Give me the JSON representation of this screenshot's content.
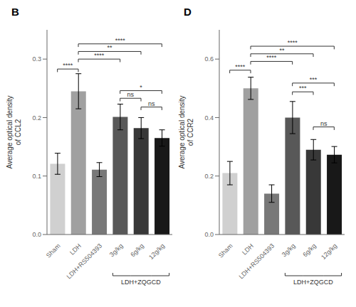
{
  "chart_data": [
    {
      "type": "bar",
      "title": "B",
      "ylabel": "Average optical density\nof CCL2",
      "categories": [
        "Sham",
        "LDH",
        "LDH+RS504393",
        "3g/kg",
        "6g/kg",
        "12g/kg"
      ],
      "values": [
        0.121,
        0.245,
        0.111,
        0.201,
        0.182,
        0.165
      ],
      "errors": [
        0.018,
        0.03,
        0.012,
        0.022,
        0.018,
        0.014
      ],
      "colors": [
        "#d0d0d0",
        "#a0a0a0",
        "#787878",
        "#585858",
        "#383838",
        "#181818"
      ],
      "ylim": [
        0.0,
        0.35
      ],
      "yticks": [
        {
          "value": 0,
          "label": "0.0"
        },
        0.1,
        0.2,
        0.3
      ],
      "annotations": [
        {
          "from": "Sham",
          "to": "LDH",
          "y": 0.283,
          "label": "****"
        },
        {
          "from": "LDH",
          "to": "3g/kg",
          "y": 0.3,
          "label": "****"
        },
        {
          "from": "LDH",
          "to": "6g/kg",
          "y": 0.313,
          "label": "**"
        },
        {
          "from": "LDH",
          "to": "12g/kg",
          "y": 0.326,
          "label": "****"
        },
        {
          "from": "3g/kg",
          "to": "6g/kg",
          "y": 0.233,
          "label": "ns"
        },
        {
          "from": "6g/kg",
          "to": "12g/kg",
          "y": 0.218,
          "label": "ns"
        },
        {
          "from": "3g/kg",
          "to": "12g/kg",
          "y": 0.246,
          "label": "*"
        }
      ],
      "bracket": {
        "label": "LDH+ZQGCD",
        "from": "3g/kg",
        "to": "12g/kg"
      }
    },
    {
      "type": "bar",
      "title": "D",
      "ylabel": "Average optical density\nof CCR2",
      "categories": [
        "Sham",
        "LDH",
        "LDH+RS504393",
        "3g/kg",
        "6g/kg",
        "12g/kg"
      ],
      "values": [
        0.21,
        0.5,
        0.14,
        0.4,
        0.29,
        0.273
      ],
      "errors": [
        0.04,
        0.038,
        0.03,
        0.055,
        0.035,
        0.028
      ],
      "colors": [
        "#d0d0d0",
        "#a0a0a0",
        "#787878",
        "#585858",
        "#383838",
        "#181818"
      ],
      "ylim": [
        0.0,
        0.7
      ],
      "yticks": [
        {
          "value": 0,
          "label": "0.0"
        },
        0.2,
        0.4,
        0.6
      ],
      "annotations": [
        {
          "from": "Sham",
          "to": "LDH",
          "y": 0.562,
          "label": "****"
        },
        {
          "from": "LDH",
          "to": "3g/kg",
          "y": 0.592,
          "label": "****"
        },
        {
          "from": "LDH",
          "to": "6g/kg",
          "y": 0.618,
          "label": "**"
        },
        {
          "from": "LDH",
          "to": "12g/kg",
          "y": 0.644,
          "label": "****"
        },
        {
          "from": "3g/kg",
          "to": "6g/kg",
          "y": 0.488,
          "label": "***"
        },
        {
          "from": "6g/kg",
          "to": "12g/kg",
          "y": 0.368,
          "label": "ns"
        },
        {
          "from": "3g/kg",
          "to": "12g/kg",
          "y": 0.518,
          "label": "***"
        }
      ],
      "bracket": {
        "label": "LDH+ZQGCD",
        "from": "3g/kg",
        "to": "12g/kg"
      }
    }
  ]
}
